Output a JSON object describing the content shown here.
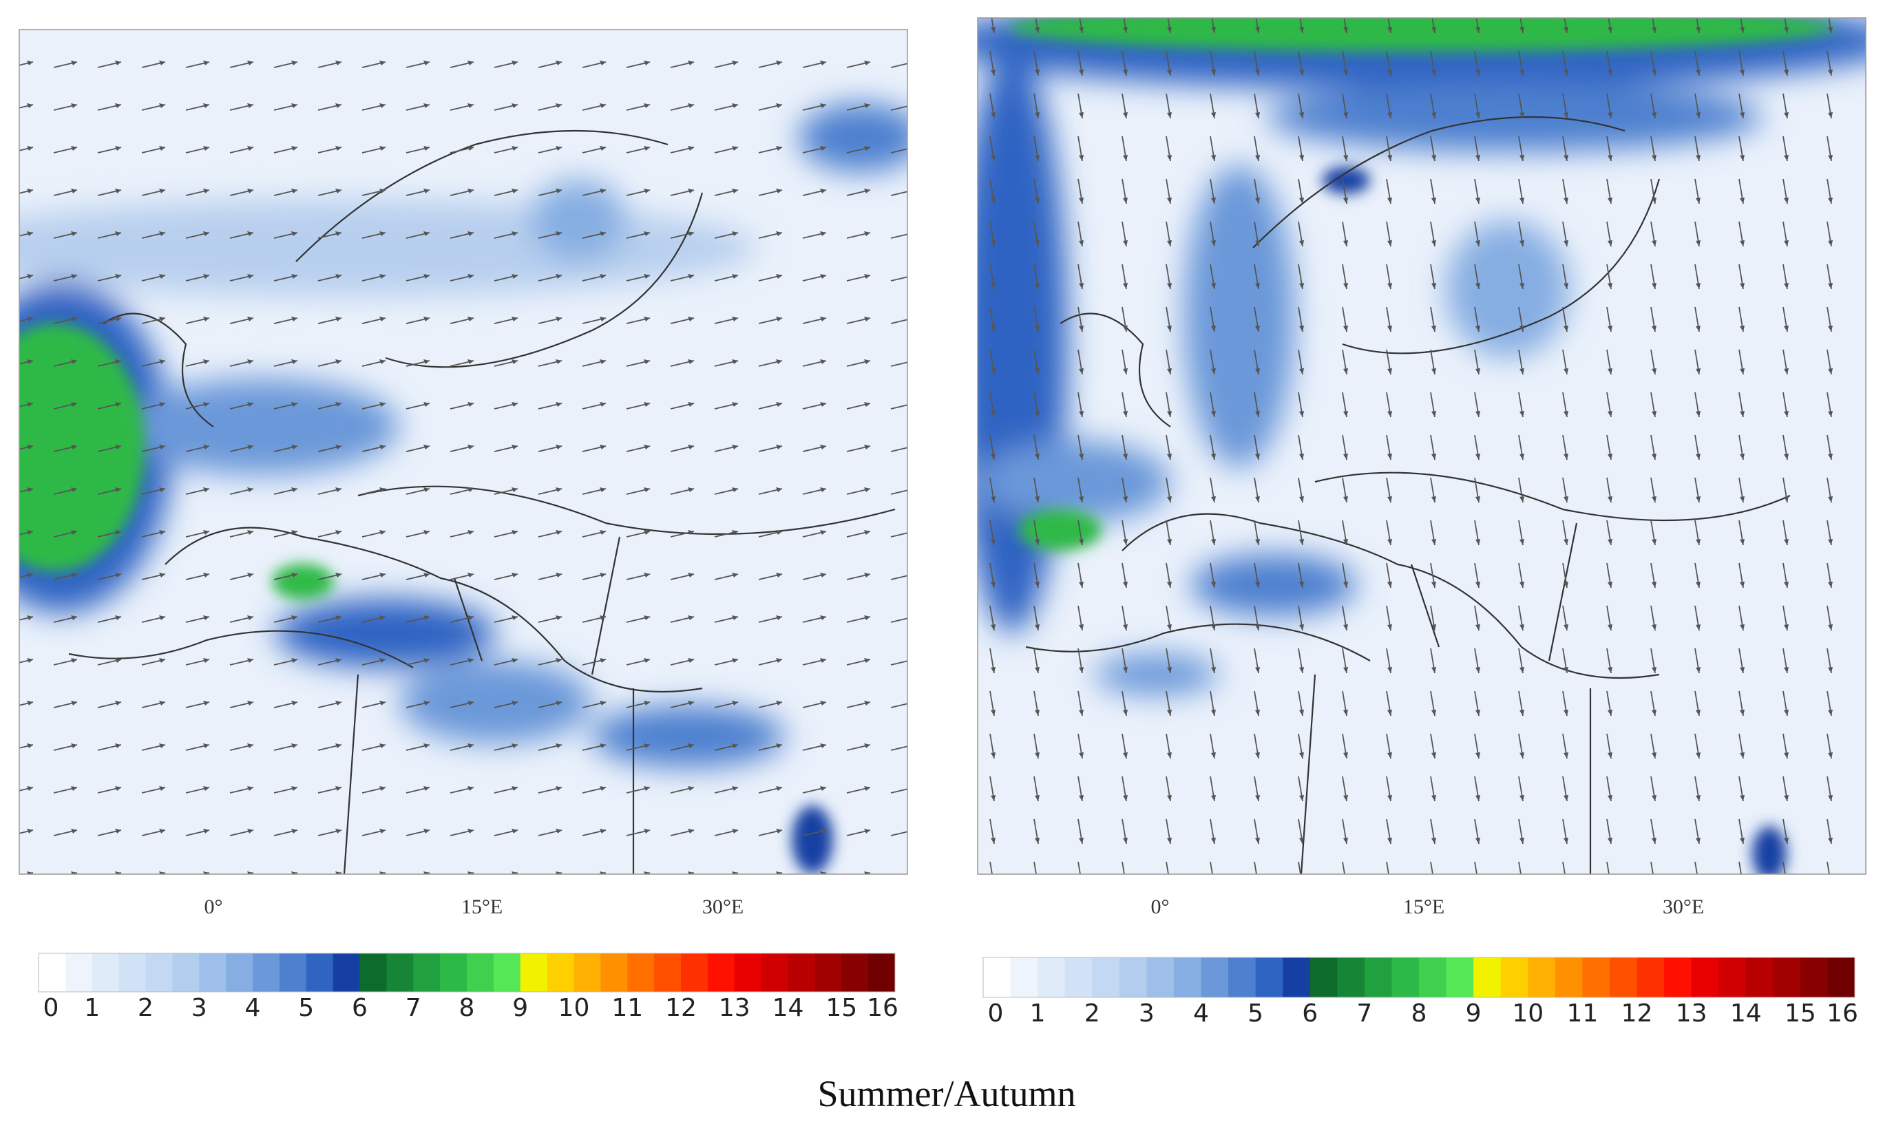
{
  "colorbar_colors": [
    "#ffffff",
    "#eef4fc",
    "#e0ebf9",
    "#d2e2f6",
    "#c3d8f2",
    "#b3cdee",
    "#9ebfe9",
    "#86aee2",
    "#6b98d9",
    "#4e80cf",
    "#2f64c3",
    "#163fa3",
    "#0d6b2c",
    "#168636",
    "#20a03f",
    "#2db947",
    "#3fd14e",
    "#55e755",
    "#f2f200",
    "#ffd000",
    "#ffb000",
    "#ff9000",
    "#ff7000",
    "#ff5000",
    "#ff3000",
    "#ff1000",
    "#e80000",
    "#d00000",
    "#b80000",
    "#a00000",
    "#880000",
    "#700000"
  ],
  "panels": [
    {
      "lon_labels": [
        "0°",
        "15°E",
        "30°E"
      ],
      "colorbar_ticks": [
        0,
        1,
        2,
        3,
        4,
        5,
        6,
        7,
        8,
        9,
        10,
        11,
        12,
        13,
        14,
        15,
        16
      ]
    },
    {
      "lon_labels": [
        "0°",
        "15°E",
        "30°E"
      ],
      "colorbar_ticks": [
        0,
        1,
        2,
        3,
        4,
        5,
        6,
        7,
        8,
        9,
        10,
        11,
        12,
        13,
        14,
        15,
        16
      ]
    }
  ],
  "caption": "Summer/Autumn"
}
